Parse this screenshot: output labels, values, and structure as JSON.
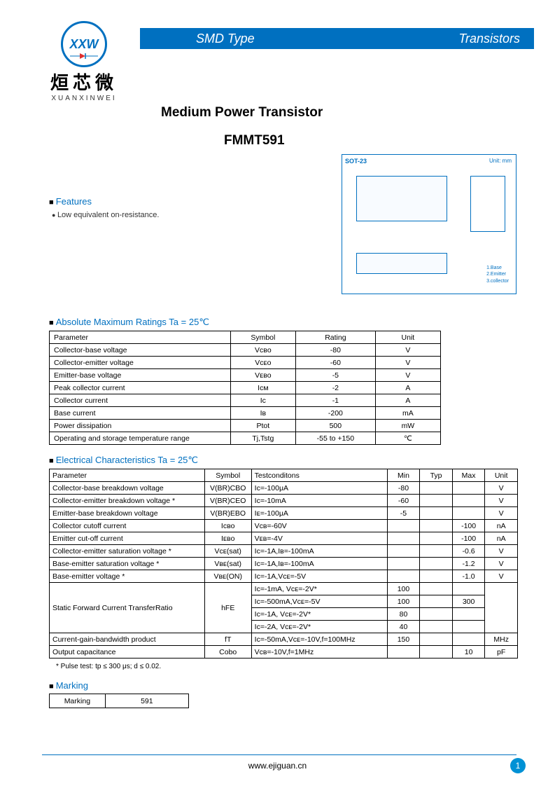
{
  "header": {
    "banner_left": "SMD Type",
    "banner_right": "Transistors",
    "banner_bg": "#0070c0",
    "banner_color": "#ffffff"
  },
  "logo": {
    "mark": "XXW",
    "cn": "烜芯微",
    "en": "XUANXINWEI"
  },
  "title": {
    "main": "Medium Power Transistor",
    "part": "FMMT591"
  },
  "features": {
    "heading": "Features",
    "items": [
      "Low equivalent on-resistance."
    ]
  },
  "package": {
    "name": "SOT-23",
    "unit_label": "Unit: mm",
    "pins": [
      "1.Base",
      "2.Emitter",
      "3.collector"
    ]
  },
  "ratings": {
    "heading": "Absolute Maximum Ratings Ta = 25℃",
    "columns": [
      "Parameter",
      "Symbol",
      "Rating",
      "Unit"
    ],
    "rows": [
      [
        "Collector-base voltage",
        "Vᴄʙᴏ",
        "-80",
        "V"
      ],
      [
        "Collector-emitter voltage",
        "Vᴄᴇᴏ",
        "-60",
        "V"
      ],
      [
        "Emitter-base voltage",
        "Vᴇʙᴏ",
        "-5",
        "V"
      ],
      [
        "Peak collector current",
        "Iᴄᴍ",
        "-2",
        "A"
      ],
      [
        "Collector current",
        "Iᴄ",
        "-1",
        "A"
      ],
      [
        "Base current",
        "Iʙ",
        "-200",
        "mA"
      ],
      [
        "Power dissipation",
        "Ptot",
        "500",
        "mW"
      ],
      [
        "Operating and storage temperature range",
        "Tj,Tstg",
        "-55 to +150",
        "℃"
      ]
    ]
  },
  "electrical": {
    "heading": "Electrical Characteristics Ta = 25℃",
    "columns": [
      "Parameter",
      "Symbol",
      "Testconditons",
      "Min",
      "Typ",
      "Max",
      "Unit"
    ],
    "rows": [
      {
        "param": "Collector-base breakdown voltage",
        "symbol": "V(BR)CBO",
        "cond": "Iᴄ=-100μA",
        "min": "-80",
        "typ": "",
        "max": "",
        "unit": "V"
      },
      {
        "param": "Collector-emitter breakdown voltage  *",
        "symbol": "V(BR)CEO",
        "cond": "Iᴄ=-10mA",
        "min": "-60",
        "typ": "",
        "max": "",
        "unit": "V"
      },
      {
        "param": "Emitter-base breakdown voltage",
        "symbol": "V(BR)EBO",
        "cond": "Iᴇ=-100μA",
        "min": "-5",
        "typ": "",
        "max": "",
        "unit": "V"
      },
      {
        "param": "Collector cutoff current",
        "symbol": "Iᴄʙᴏ",
        "cond": "Vᴄʙ=-60V",
        "min": "",
        "typ": "",
        "max": "-100",
        "unit": "nA"
      },
      {
        "param": "Emitter cut-off current",
        "symbol": "Iᴇʙᴏ",
        "cond": "Vᴇʙ=-4V",
        "min": "",
        "typ": "",
        "max": "-100",
        "unit": "nA"
      },
      {
        "param": "Collector-emitter saturation voltage  *",
        "symbol": "Vᴄᴇ(sat)",
        "cond": "Iᴄ=-1A,Iʙ=-100mA",
        "min": "",
        "typ": "",
        "max": "-0.6",
        "unit": "V"
      },
      {
        "param": "Base-emitter saturation voltage  *",
        "symbol": "Vʙᴇ(sat)",
        "cond": "Iᴄ=-1A,Iʙ=-100mA",
        "min": "",
        "typ": "",
        "max": "-1.2",
        "unit": "V"
      },
      {
        "param": "Base-emitter voltage  *",
        "symbol": "Vʙᴇ(ON)",
        "cond": "Iᴄ=-1A,Vᴄᴇ=-5V",
        "min": "",
        "typ": "",
        "max": "-1.0",
        "unit": "V"
      }
    ],
    "hfe": {
      "param": "Static Forward Current TransferRatio",
      "symbol": "hFE",
      "conds": [
        {
          "cond": "Iᴄ=-1mA, Vᴄᴇ=-2V*",
          "min": "100",
          "typ": "",
          "max": ""
        },
        {
          "cond": "Iᴄ=-500mA,Vᴄᴇ=-5V",
          "min": "100",
          "typ": "",
          "max": "300"
        },
        {
          "cond": "Iᴄ=-1A, Vᴄᴇ=-2V*",
          "min": "80",
          "typ": "",
          "max": ""
        },
        {
          "cond": "Iᴄ=-2A, Vᴄᴇ=-2V*",
          "min": "40",
          "typ": "",
          "max": ""
        }
      ],
      "unit": ""
    },
    "tail_rows": [
      {
        "param": "Current-gain-bandwidth product",
        "symbol": "fT",
        "cond": "Iᴄ=-50mA,Vᴄᴇ=-10V,f=100MHz",
        "min": "150",
        "typ": "",
        "max": "",
        "unit": "MHz"
      },
      {
        "param": "Output capacitance",
        "symbol": "Cobo",
        "cond": "Vᴄʙ=-10V,f=1MHz",
        "min": "",
        "typ": "",
        "max": "10",
        "unit": "pF"
      }
    ],
    "footnote": "* Pulse test: tp ≤ 300 μs; d ≤ 0.02."
  },
  "marking": {
    "heading": "Marking",
    "label": "Marking",
    "value": "591"
  },
  "footer": {
    "url": "www.ejiguan.cn",
    "page": "1"
  }
}
